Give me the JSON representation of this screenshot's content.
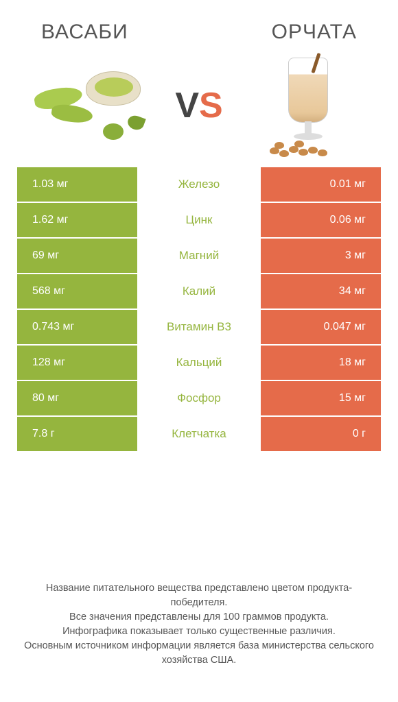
{
  "left_title": "ВАСАБИ",
  "right_title": "ОРЧАТА",
  "vs_v": "V",
  "vs_s": "S",
  "colors": {
    "left": "#95b53e",
    "right": "#e56b4a",
    "label_left": "#95b53e",
    "label_right": "#e56b4a",
    "title": "#555555",
    "row_text": "#ffffff"
  },
  "rows": [
    {
      "label": "Железо",
      "left": "1.03 мг",
      "right": "0.01 мг",
      "winner": "left"
    },
    {
      "label": "Цинк",
      "left": "1.62 мг",
      "right": "0.06 мг",
      "winner": "left"
    },
    {
      "label": "Магний",
      "left": "69 мг",
      "right": "3 мг",
      "winner": "left"
    },
    {
      "label": "Калий",
      "left": "568 мг",
      "right": "34 мг",
      "winner": "left"
    },
    {
      "label": "Витамин B3",
      "left": "0.743 мг",
      "right": "0.047 мг",
      "winner": "left"
    },
    {
      "label": "Кальций",
      "left": "128 мг",
      "right": "18 мг",
      "winner": "left"
    },
    {
      "label": "Фосфор",
      "left": "80 мг",
      "right": "15 мг",
      "winner": "left"
    },
    {
      "label": "Клетчатка",
      "left": "7.8 г",
      "right": "0 г",
      "winner": "left"
    }
  ],
  "footer": {
    "l1": "Название питательного вещества представлено цветом продукта-победителя.",
    "l2": "Все значения представлены для 100 граммов продукта.",
    "l3": "Инфографика показывает только существенные различия.",
    "l4": "Основным источником информации является база министерства сельского хозяйства США."
  }
}
